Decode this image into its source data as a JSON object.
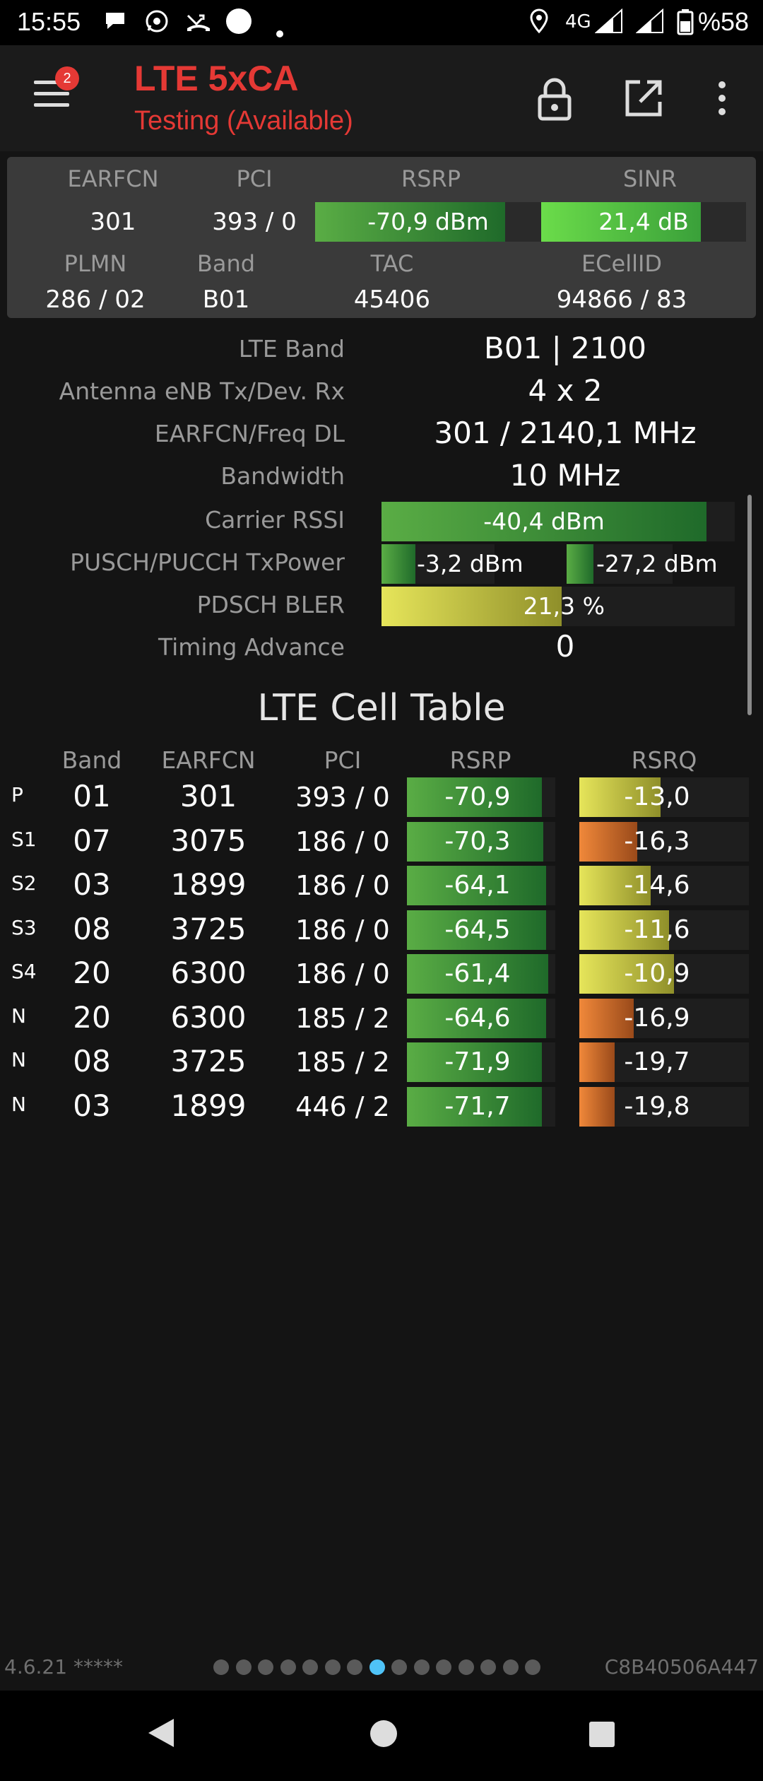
{
  "status_bar": {
    "time": "15:55",
    "network": "4G",
    "battery": "%58"
  },
  "app_bar": {
    "title": "LTE 5xCA",
    "subtitle": "Testing (Available)",
    "notification_count": "2"
  },
  "summary": {
    "headers": {
      "earfcn": "EARFCN",
      "pci": "PCI",
      "rsrp": "RSRP",
      "sinr": "SINR",
      "plmn": "PLMN",
      "band": "Band",
      "tac": "TAC",
      "ecellid": "ECellID"
    },
    "earfcn": "301",
    "pci": "393 / 0",
    "rsrp": {
      "text": "-70,9 dBm",
      "fill": 0.84
    },
    "sinr": {
      "text": "21,4 dB",
      "fill": 0.78
    },
    "plmn": "286 / 02",
    "band": "B01",
    "tac": "45406",
    "ecellid": "94866 / 83"
  },
  "details": {
    "lte_band": {
      "label": "LTE Band",
      "value": "B01 | 2100"
    },
    "antenna": {
      "label": "Antenna eNB Tx/Dev. Rx",
      "value": "4 x 2"
    },
    "earfcn_freq": {
      "label": "EARFCN/Freq DL",
      "value": "301 / 2140,1 MHz"
    },
    "bandwidth": {
      "label": "Bandwidth",
      "value": "10 MHz"
    },
    "carrier_rssi": {
      "label": "Carrier RSSI",
      "value": "-40,4 dBm",
      "fill": 0.92
    },
    "tx_power": {
      "label": "PUSCH/PUCCH TxPower",
      "pusch": "-3,2 dBm",
      "pucch": "-27,2 dBm",
      "pusch_fill": 0.3,
      "pucch_fill": 0.25
    },
    "pdsch_bler": {
      "label": "PDSCH BLER",
      "value": "21,3 %",
      "fill": 0.51
    },
    "timing_advance": {
      "label": "Timing Advance",
      "value": "0"
    }
  },
  "cell_table": {
    "title": "LTE Cell Table",
    "headers": {
      "band": "Band",
      "earfcn": "EARFCN",
      "pci": "PCI",
      "rsrp": "RSRP",
      "rsrq": "RSRQ"
    },
    "rows": [
      {
        "tag": "P",
        "band": "01",
        "earfcn": "301",
        "pci": "393 / 0",
        "rsrp": "-70,9",
        "rsrp_fill": 0.91,
        "rsrq": "-13,0",
        "rsrq_fill": 0.48,
        "rsrq_color": "yellow"
      },
      {
        "tag": "S1",
        "band": "07",
        "earfcn": "3075",
        "pci": "186 / 0",
        "rsrp": "-70,3",
        "rsrp_fill": 0.92,
        "rsrq": "-16,3",
        "rsrq_fill": 0.34,
        "rsrq_color": "orange"
      },
      {
        "tag": "S2",
        "band": "03",
        "earfcn": "1899",
        "pci": "186 / 0",
        "rsrp": "-64,1",
        "rsrp_fill": 0.94,
        "rsrq": "-14,6",
        "rsrq_fill": 0.42,
        "rsrq_color": "yellow"
      },
      {
        "tag": "S3",
        "band": "08",
        "earfcn": "3725",
        "pci": "186 / 0",
        "rsrp": "-64,5",
        "rsrp_fill": 0.94,
        "rsrq": "-11,6",
        "rsrq_fill": 0.53,
        "rsrq_color": "yellow"
      },
      {
        "tag": "S4",
        "band": "20",
        "earfcn": "6300",
        "pci": "186 / 0",
        "rsrp": "-61,4",
        "rsrp_fill": 0.95,
        "rsrq": "-10,9",
        "rsrq_fill": 0.56,
        "rsrq_color": "yellow"
      },
      {
        "tag": "N",
        "band": "20",
        "earfcn": "6300",
        "pci": "185 / 2",
        "rsrp": "-64,6",
        "rsrp_fill": 0.94,
        "rsrq": "-16,9",
        "rsrq_fill": 0.32,
        "rsrq_color": "orange"
      },
      {
        "tag": "N",
        "band": "08",
        "earfcn": "3725",
        "pci": "185 / 2",
        "rsrp": "-71,9",
        "rsrp_fill": 0.91,
        "rsrq": "-19,7",
        "rsrq_fill": 0.21,
        "rsrq_color": "orange"
      },
      {
        "tag": "N",
        "band": "03",
        "earfcn": "1899",
        "pci": "446 / 2",
        "rsrp": "-71,7",
        "rsrp_fill": 0.91,
        "rsrq": "-19,8",
        "rsrq_fill": 0.21,
        "rsrq_color": "orange"
      }
    ]
  },
  "footer": {
    "version": "4.6.21 *****",
    "device_id": "C8B40506A447",
    "page_count": 15,
    "active_page": 7
  }
}
